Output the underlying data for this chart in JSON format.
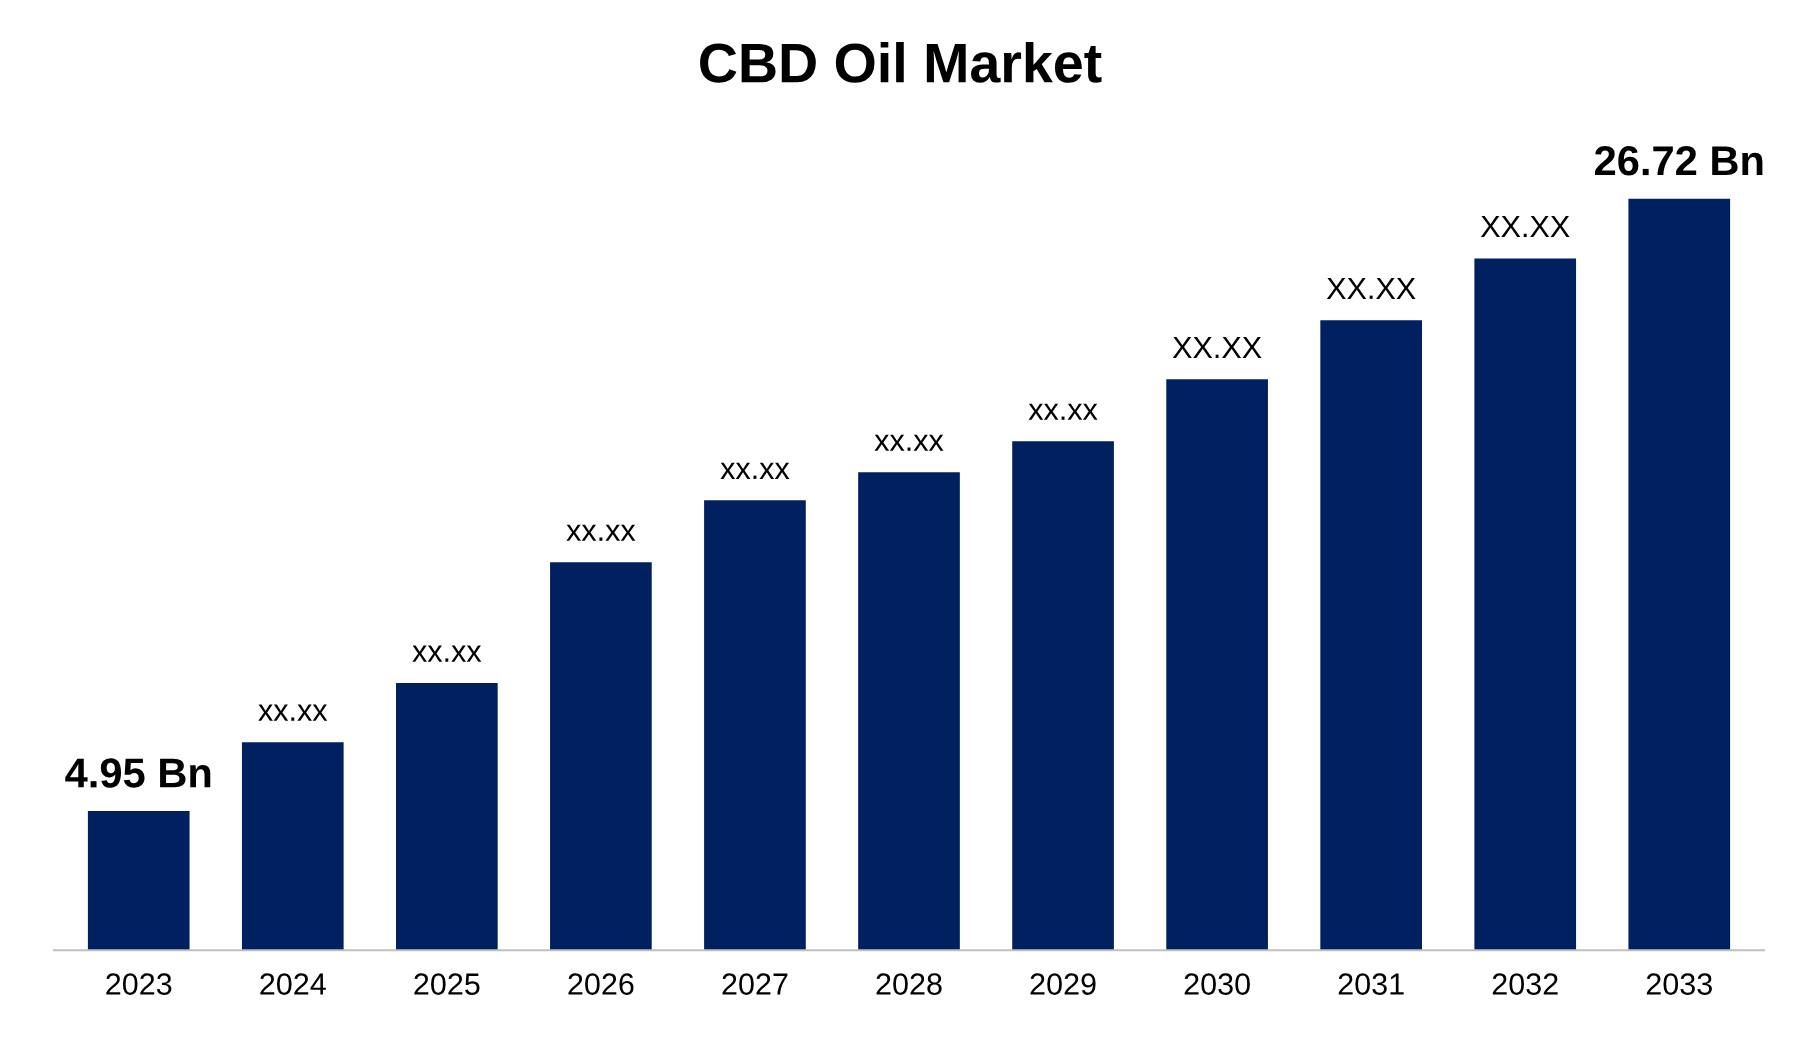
{
  "chart_data": {
    "type": "bar",
    "title": "CBD Oil Market",
    "categories": [
      "2023",
      "2024",
      "2025",
      "2026",
      "2027",
      "2028",
      "2029",
      "2030",
      "2031",
      "2032",
      "2033"
    ],
    "values": [
      4.95,
      7.4,
      9.5,
      13.8,
      16.0,
      17.0,
      18.1,
      20.3,
      22.4,
      24.6,
      26.72
    ],
    "value_labels": [
      "4.95 Bn",
      "xx.xx",
      "xx.xx",
      "xx.xx",
      "xx.xx",
      "xx.xx",
      "xx.xx",
      "XX.XX",
      "XX.XX",
      "XX.XX",
      "26.72 Bn"
    ],
    "color": "#002060",
    "grid": false,
    "legend": false
  }
}
